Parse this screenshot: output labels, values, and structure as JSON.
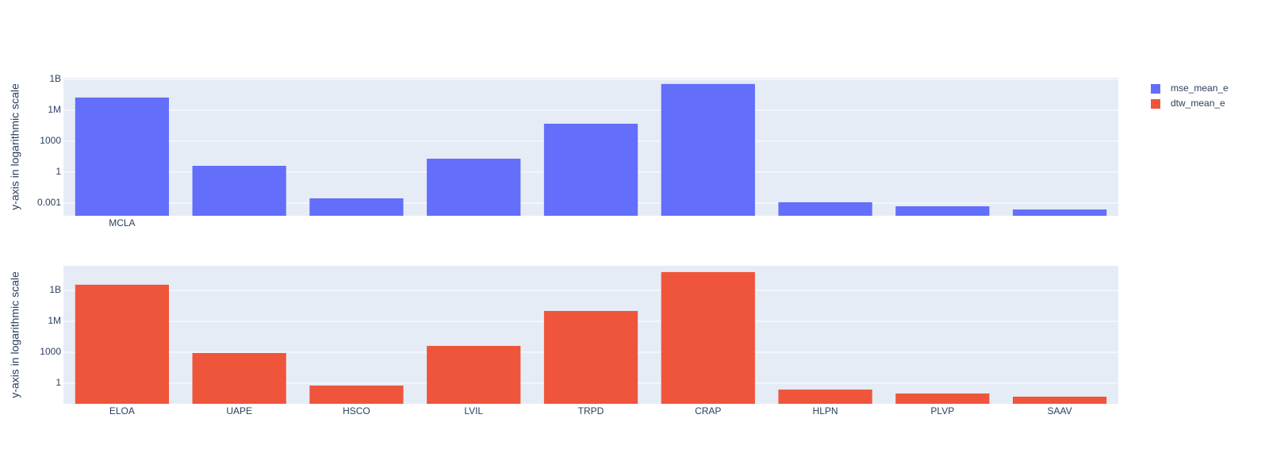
{
  "chart_data": [
    {
      "type": "bar",
      "y_label": "y-axis in logarithmic scale",
      "log_y": true,
      "grid": true,
      "categories": [
        "MCLA",
        null,
        null,
        null,
        null,
        null,
        null,
        null,
        null
      ],
      "series": [
        {
          "name": "mse_mean_e",
          "color": "#636efa",
          "values": [
            17000000,
            4.1,
            0.0029,
            20,
            49000,
            350000000,
            0.0012,
            0.00049,
            0.00024
          ]
        }
      ],
      "ylim": [
        5.9e-05,
        1400000000
      ],
      "yticks": [
        0.001,
        1,
        1000,
        {
          "value": 1000000,
          "label": "1M"
        },
        {
          "value": 1000000000,
          "label": "1B"
        }
      ]
    },
    {
      "type": "bar",
      "y_label": "y-axis in logarithmic scale",
      "log_y": true,
      "grid": true,
      "categories": [
        "ELOA",
        "UAPE",
        "HSCO",
        "LVIL",
        "TRPD",
        "CRAP",
        "HLPN",
        "PLVP",
        "SAAV"
      ],
      "series": [
        {
          "name": "dtw_mean_e",
          "color": "#ef553b",
          "values": [
            3500000000,
            840,
            0.59,
            4100,
            10000000,
            59000000000,
            0.24,
            0.1,
            0.049
          ]
        }
      ],
      "ylim": [
        0.01,
        240000000000
      ],
      "yticks": [
        1,
        1000,
        {
          "value": 1000000,
          "label": "1M"
        },
        {
          "value": 1000000000,
          "label": "1B"
        }
      ]
    }
  ]
}
